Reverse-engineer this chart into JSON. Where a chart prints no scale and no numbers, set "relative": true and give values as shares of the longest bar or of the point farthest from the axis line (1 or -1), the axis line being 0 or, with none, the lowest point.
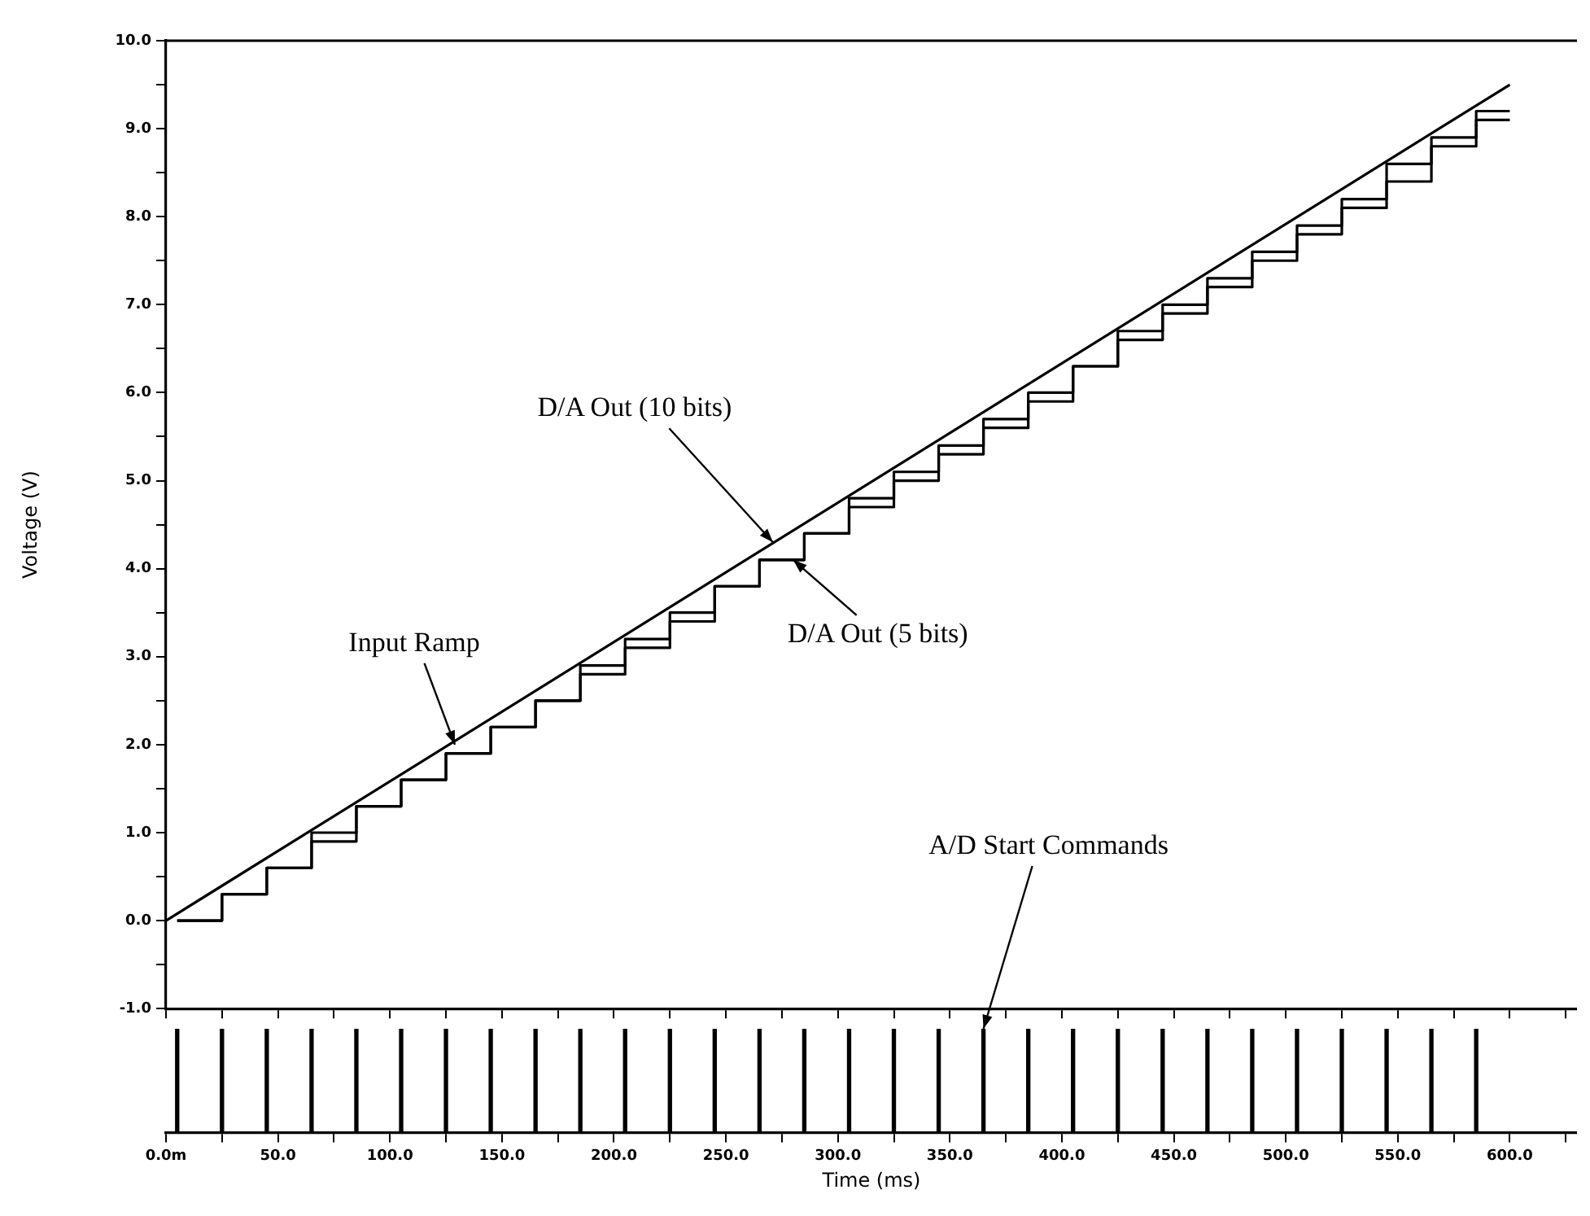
{
  "chart_data": [
    {
      "type": "line",
      "ylabel": "Voltage (V)",
      "xlim": [
        0,
        630
      ],
      "ylim": [
        -1,
        10
      ],
      "tick_labels": "y",
      "grid": false,
      "xticks": [
        {
          "value": 0,
          "label": null
        },
        {
          "value": 25,
          "label": null
        },
        {
          "value": 50,
          "label": null
        },
        {
          "value": 75,
          "label": null
        },
        {
          "value": 100,
          "label": null
        },
        {
          "value": 125,
          "label": null
        },
        {
          "value": 150,
          "label": null
        },
        {
          "value": 175,
          "label": null
        },
        {
          "value": 200,
          "label": null
        },
        {
          "value": 225,
          "label": null
        },
        {
          "value": 250,
          "label": null
        },
        {
          "value": 275,
          "label": null
        },
        {
          "value": 300,
          "label": null
        },
        {
          "value": 325,
          "label": null
        },
        {
          "value": 350,
          "label": null
        },
        {
          "value": 375,
          "label": null
        },
        {
          "value": 400,
          "label": null
        },
        {
          "value": 425,
          "label": null
        },
        {
          "value": 450,
          "label": null
        },
        {
          "value": 475,
          "label": null
        },
        {
          "value": 500,
          "label": null
        },
        {
          "value": 525,
          "label": null
        },
        {
          "value": 550,
          "label": null
        },
        {
          "value": 575,
          "label": null
        },
        {
          "value": 600,
          "label": null
        },
        {
          "value": 625,
          "label": null
        }
      ],
      "yticks": [
        {
          "value": -1,
          "label": "-1.0"
        },
        {
          "value": -0.5,
          "label": null
        },
        {
          "value": 0,
          "label": "0.0"
        },
        {
          "value": 0.5,
          "label": null
        },
        {
          "value": 1,
          "label": "1.0"
        },
        {
          "value": 1.5,
          "label": null
        },
        {
          "value": 2,
          "label": "2.0"
        },
        {
          "value": 2.5,
          "label": null
        },
        {
          "value": 3,
          "label": "3.0"
        },
        {
          "value": 3.5,
          "label": null
        },
        {
          "value": 4,
          "label": "4.0"
        },
        {
          "value": 4.5,
          "label": null
        },
        {
          "value": 5,
          "label": "5.0"
        },
        {
          "value": 5.5,
          "label": null
        },
        {
          "value": 6,
          "label": "6.0"
        },
        {
          "value": 6.5,
          "label": null
        },
        {
          "value": 7,
          "label": "7.0"
        },
        {
          "value": 7.5,
          "label": null
        },
        {
          "value": 8,
          "label": "8.0"
        },
        {
          "value": 8.5,
          "label": null
        },
        {
          "value": 9,
          "label": "9.0"
        },
        {
          "value": 9.5,
          "label": null
        },
        {
          "value": 10,
          "label": "10.0"
        }
      ],
      "series": [
        {
          "color": "#000000",
          "x": [
            0,
            600
          ],
          "values": [
            0,
            9.5
          ]
        },
        {
          "type": "step",
          "color": "#000000",
          "x": [
            5,
            25,
            45,
            65,
            85,
            105,
            125,
            145,
            165,
            185,
            205,
            225,
            245,
            265,
            285,
            305,
            325,
            345,
            365,
            385,
            405,
            425,
            445,
            465,
            485,
            505,
            525,
            545,
            565,
            585,
            600
          ],
          "values": [
            0.0,
            0.3,
            0.6,
            1.0,
            1.3,
            1.6,
            1.9,
            2.2,
            2.5,
            2.9,
            3.2,
            3.5,
            3.8,
            4.1,
            4.4,
            4.8,
            5.1,
            5.4,
            5.7,
            6.0,
            6.3,
            6.7,
            7.0,
            7.3,
            7.6,
            7.9,
            8.2,
            8.6,
            8.9,
            9.2,
            9.2
          ]
        },
        {
          "type": "step",
          "color": "#000000",
          "x": [
            5,
            25,
            45,
            65,
            85,
            105,
            125,
            145,
            165,
            185,
            205,
            225,
            245,
            265,
            285,
            305,
            325,
            345,
            365,
            385,
            405,
            425,
            445,
            465,
            485,
            505,
            525,
            545,
            565,
            585,
            600
          ],
          "values": [
            0.0,
            0.3,
            0.6,
            0.9,
            1.3,
            1.6,
            1.9,
            2.2,
            2.5,
            2.8,
            3.1,
            3.4,
            3.8,
            4.1,
            4.4,
            4.7,
            5.0,
            5.3,
            5.6,
            5.9,
            6.3,
            6.6,
            6.9,
            7.2,
            7.5,
            7.8,
            8.1,
            8.4,
            8.8,
            9.1,
            9.1
          ]
        }
      ],
      "annotations": [
        {
          "text": "Input Ramp",
          "x": 129,
          "y": 2.0
        },
        {
          "text": "D/A Out (10 bits)",
          "x": 271,
          "y": 4.3
        },
        {
          "text": "D/A Out (5 bits)",
          "x": 280,
          "y": 4.1
        }
      ]
    },
    {
      "type": "bar",
      "relative": true,
      "xlabel": "Time (ms)",
      "xlim": [
        0,
        630
      ],
      "tick_labels": "x",
      "grid": false,
      "xticks": [
        {
          "value": 0,
          "label": "0.0m"
        },
        {
          "value": 25,
          "label": null
        },
        {
          "value": 50,
          "label": "50.0"
        },
        {
          "value": 75,
          "label": null
        },
        {
          "value": 100,
          "label": "100.0"
        },
        {
          "value": 125,
          "label": null
        },
        {
          "value": 150,
          "label": "150.0"
        },
        {
          "value": 175,
          "label": null
        },
        {
          "value": 200,
          "label": "200.0"
        },
        {
          "value": 225,
          "label": null
        },
        {
          "value": 250,
          "label": "250.0"
        },
        {
          "value": 275,
          "label": null
        },
        {
          "value": 300,
          "label": "300.0"
        },
        {
          "value": 325,
          "label": null
        },
        {
          "value": 350,
          "label": "350.0"
        },
        {
          "value": 375,
          "label": null
        },
        {
          "value": 400,
          "label": "400.0"
        },
        {
          "value": 425,
          "label": null
        },
        {
          "value": 450,
          "label": "450.0"
        },
        {
          "value": 475,
          "label": null
        },
        {
          "value": 500,
          "label": "500.0"
        },
        {
          "value": 525,
          "label": null
        },
        {
          "value": 550,
          "label": "550.0"
        },
        {
          "value": 575,
          "label": null
        },
        {
          "value": 600,
          "label": "600.0"
        },
        {
          "value": 625,
          "label": null
        }
      ],
      "x": [
        5,
        25,
        45,
        65,
        85,
        105,
        125,
        145,
        165,
        185,
        205,
        225,
        245,
        265,
        285,
        305,
        325,
        345,
        365,
        385,
        405,
        425,
        445,
        465,
        485,
        505,
        525,
        545,
        565,
        585
      ],
      "values": [
        1,
        1,
        1,
        1,
        1,
        1,
        1,
        1,
        1,
        1,
        1,
        1,
        1,
        1,
        1,
        1,
        1,
        1,
        1,
        1,
        1,
        1,
        1,
        1,
        1,
        1,
        1,
        1,
        1,
        1
      ],
      "color": "#000000",
      "annotations": [
        {
          "text": "A/D Start Commands",
          "x": 365,
          "y": 1
        }
      ]
    }
  ]
}
